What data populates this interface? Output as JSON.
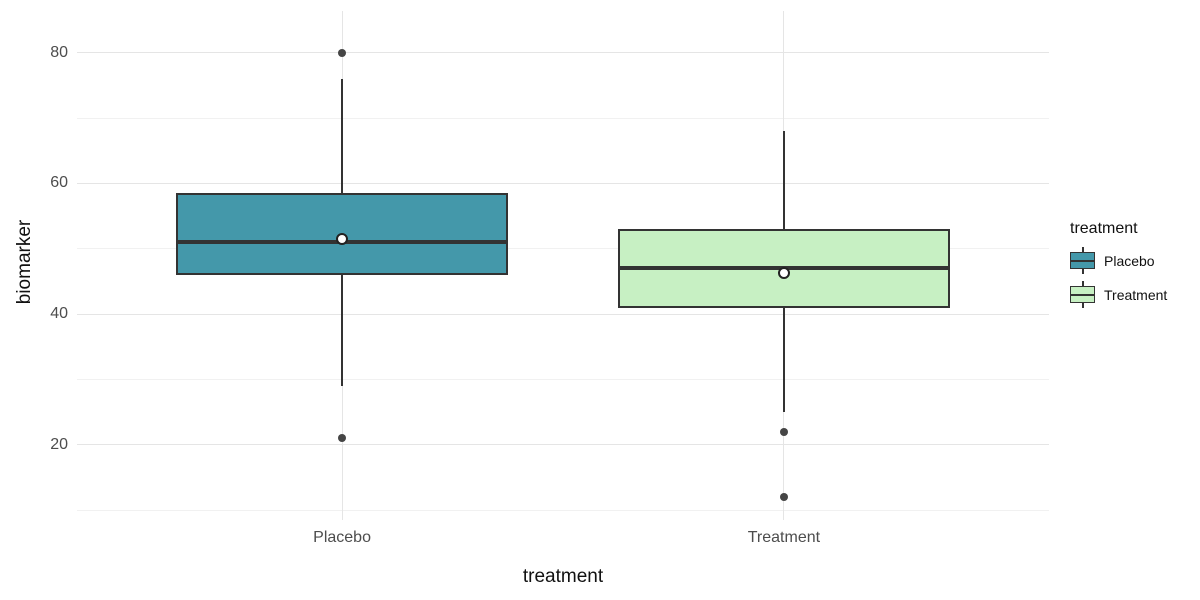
{
  "figure": {
    "background": "#ffffff"
  },
  "chart_data": {
    "type": "boxplot",
    "title": "",
    "xlabel": "treatment",
    "ylabel": "biomarker",
    "categories": [
      "Placebo",
      "Treatment"
    ],
    "y_ticks": [
      80,
      60,
      40,
      20
    ],
    "y_minor_gridlines": [
      70,
      50,
      30,
      10
    ],
    "ylim": [
      8.5,
      86.4
    ],
    "grid": "on",
    "legend": {
      "position": "right",
      "title": "treatment",
      "entries": [
        {
          "label": "Placebo",
          "fill": "#4498AA"
        },
        {
          "label": "Treatment",
          "fill": "#C7F0C3"
        }
      ]
    },
    "series": [
      {
        "name": "Placebo",
        "fill": "#4498AA",
        "whisker_low": 29,
        "q1": 46,
        "median": 51,
        "q3": 58.5,
        "whisker_high": 76,
        "mean": 51.5,
        "outliers": [
          80,
          21
        ]
      },
      {
        "name": "Treatment",
        "fill": "#C7F0C3",
        "whisker_low": 25,
        "q1": 41,
        "median": 47,
        "q3": 53,
        "whisker_high": 68,
        "mean": 46.3,
        "outliers": [
          22,
          12
        ]
      }
    ],
    "style": {
      "stroke": "#333333",
      "outlier_color": "#454545",
      "mean_fill": "#ffffff",
      "grid_major": "#E5E5E5",
      "grid_minor": "#F1F1F1",
      "tick_label_color": "#4d4d4d",
      "title_color": "#111111"
    }
  }
}
